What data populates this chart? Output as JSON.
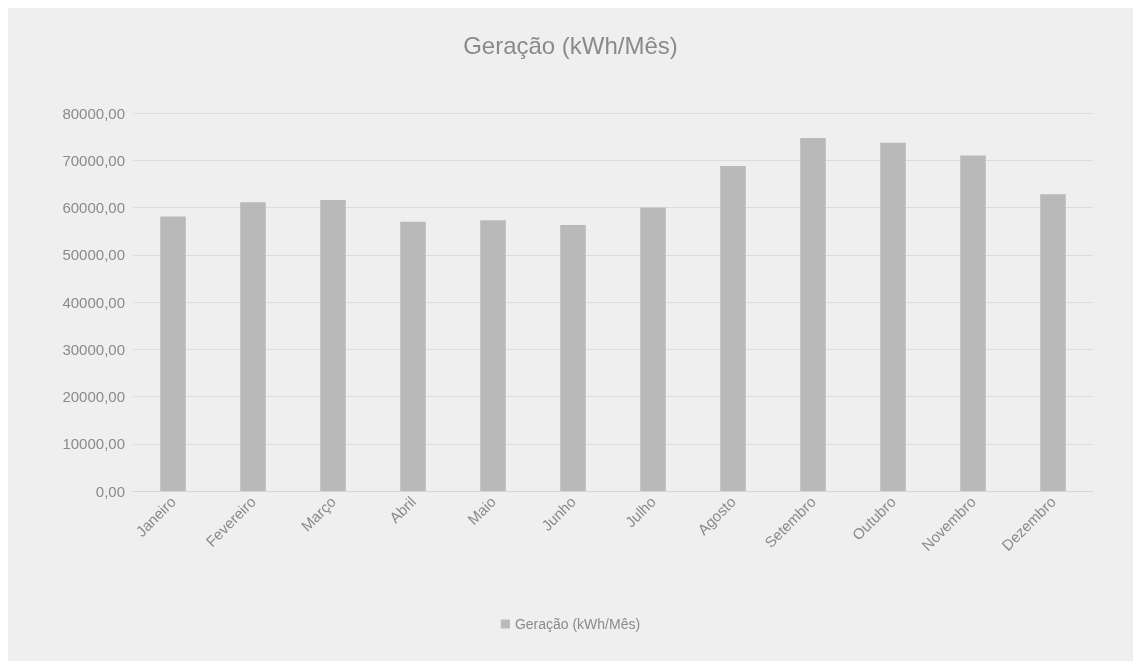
{
  "chart_data": {
    "type": "bar",
    "title": "Geração (kWh/Mês)",
    "categories": [
      "Janeiro",
      "Fevereiro",
      "Março",
      "Abril",
      "Maio",
      "Junho",
      "Julho",
      "Agosto",
      "Setembro",
      "Outubro",
      "Novembro",
      "Dezembro"
    ],
    "series": [
      {
        "name": "Geração (kWh/Mês)",
        "color": "#b9b9b9",
        "values": [
          58100,
          61100,
          61600,
          57000,
          57300,
          56300,
          60000,
          68800,
          74700,
          73700,
          71000,
          62800
        ]
      }
    ],
    "ylim": [
      0,
      80000
    ],
    "yticks": [
      {
        "value": 0,
        "label": "0,00"
      },
      {
        "value": 10000,
        "label": "10000,00"
      },
      {
        "value": 20000,
        "label": "20000,00"
      },
      {
        "value": 30000,
        "label": "30000,00"
      },
      {
        "value": 40000,
        "label": "40000,00"
      },
      {
        "value": 50000,
        "label": "50000,00"
      },
      {
        "value": 60000,
        "label": "60000,00"
      },
      {
        "value": 70000,
        "label": "70000,00"
      },
      {
        "value": 80000,
        "label": "80000,00"
      }
    ],
    "grid": "y",
    "legend": "bottom"
  }
}
